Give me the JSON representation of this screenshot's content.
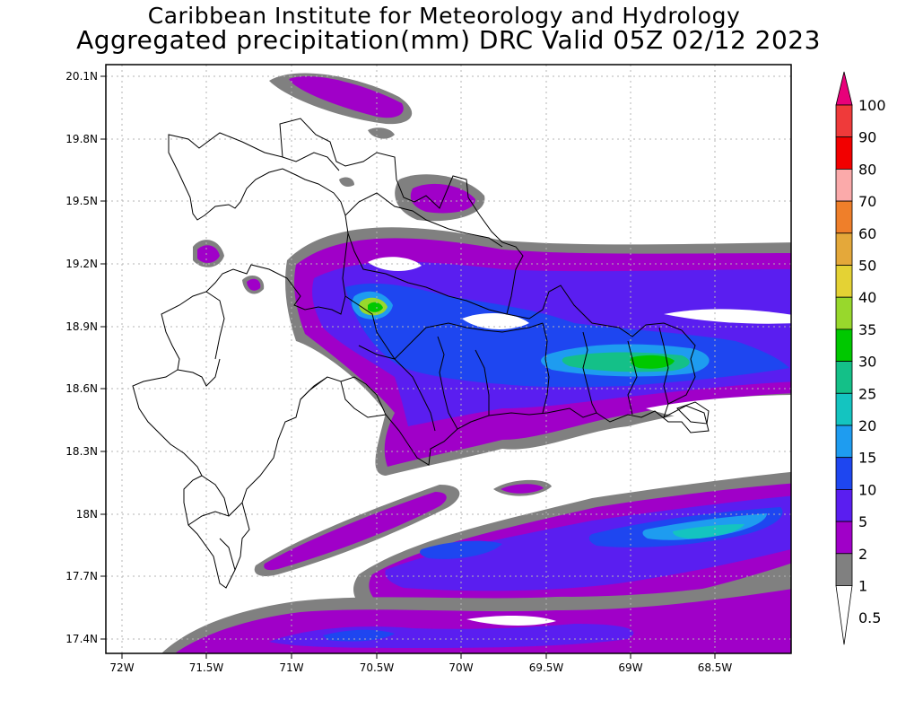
{
  "header": {
    "title": "Caribbean Institute for Meteorology and Hydrology",
    "subtitle": "Aggregated precipitation(mm) DRC Valid 05Z 02/12 2023"
  },
  "map": {
    "lat_labels": [
      "20.1N",
      "19.8N",
      "19.5N",
      "19.2N",
      "18.9N",
      "18.6N",
      "18.3N",
      "18N",
      "17.7N",
      "17.4N"
    ],
    "lon_labels": [
      "72W",
      "71.5W",
      "71W",
      "70.5W",
      "70W",
      "69.5W",
      "69W",
      "68.5W"
    ]
  },
  "legend": {
    "levels": [
      {
        "label": "100",
        "color": "#e8007a"
      },
      {
        "label": "90",
        "color": "#ef3a3a"
      },
      {
        "label": "80",
        "color": "#f20000"
      },
      {
        "label": "70",
        "color": "#fbaaaa"
      },
      {
        "label": "60",
        "color": "#ef7f2a"
      },
      {
        "label": "50",
        "color": "#e4a83a"
      },
      {
        "label": "40",
        "color": "#e4d234"
      },
      {
        "label": "35",
        "color": "#98d82c"
      },
      {
        "label": "30",
        "color": "#00c800"
      },
      {
        "label": "25",
        "color": "#14c088"
      },
      {
        "label": "20",
        "color": "#14c4c0"
      },
      {
        "label": "15",
        "color": "#1e9cf0"
      },
      {
        "label": "10",
        "color": "#1e46f0"
      },
      {
        "label": "5",
        "color": "#5a1ef0"
      },
      {
        "label": "2",
        "color": "#a000c8"
      },
      {
        "label": "1",
        "color": "#808080"
      },
      {
        "label": "0.5",
        "color": "#ffffff"
      }
    ]
  }
}
